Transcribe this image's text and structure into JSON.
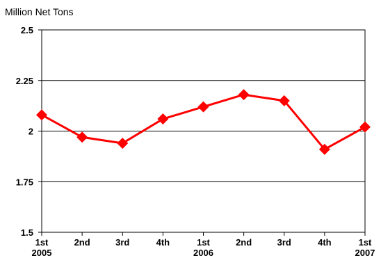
{
  "chart_data": {
    "type": "line",
    "title": "",
    "ylabel": "Million Net Tons",
    "xlabel": "",
    "ylim": [
      1.5,
      2.5
    ],
    "yticks": [
      "1.5",
      "1.75",
      "2",
      "2.25",
      "2.5"
    ],
    "grid": true,
    "categories": [
      {
        "quarter": "1st",
        "year": "2005"
      },
      {
        "quarter": "2nd",
        "year": ""
      },
      {
        "quarter": "3rd",
        "year": ""
      },
      {
        "quarter": "4th",
        "year": ""
      },
      {
        "quarter": "1st",
        "year": "2006"
      },
      {
        "quarter": "2nd",
        "year": ""
      },
      {
        "quarter": "3rd",
        "year": ""
      },
      {
        "quarter": "4th",
        "year": ""
      },
      {
        "quarter": "1st",
        "year": "2007"
      }
    ],
    "series": [
      {
        "color": "#ff0000",
        "marker": "diamond",
        "values": [
          2.08,
          1.97,
          1.94,
          2.06,
          2.12,
          2.18,
          2.15,
          1.91,
          2.02
        ]
      }
    ]
  }
}
